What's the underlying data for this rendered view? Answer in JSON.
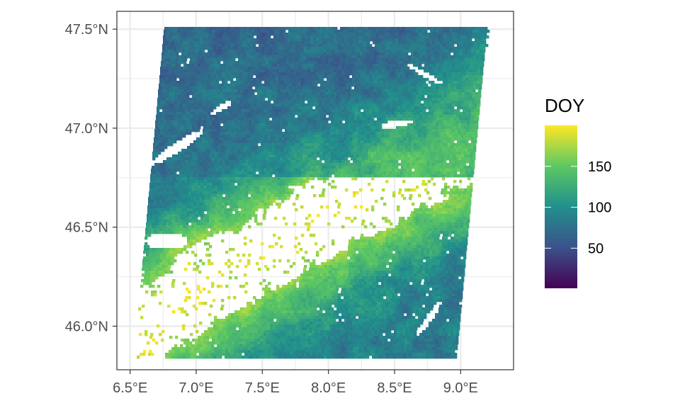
{
  "map": {
    "projection": "longitude/latitude",
    "xlim": [
      6.4,
      9.4
    ],
    "ylim": [
      45.78,
      47.59
    ],
    "x_ticks": [
      {
        "value": 6.5,
        "label": "6.5°E"
      },
      {
        "value": 7.0,
        "label": "7.0°E"
      },
      {
        "value": 7.5,
        "label": "7.5°E"
      },
      {
        "value": 8.0,
        "label": "8.0°E"
      },
      {
        "value": 8.5,
        "label": "8.5°E"
      },
      {
        "value": 9.0,
        "label": "9.0°E"
      }
    ],
    "y_ticks": [
      {
        "value": 46.0,
        "label": "46.0°N"
      },
      {
        "value": 46.5,
        "label": "46.5°N"
      },
      {
        "value": 47.0,
        "label": "47.0°N"
      },
      {
        "value": 47.5,
        "label": "47.5°N"
      }
    ],
    "grid": true,
    "raster_extent": {
      "corners": [
        [
          6.76,
          47.51
        ],
        [
          9.2,
          47.51
        ],
        [
          8.95,
          45.84
        ],
        [
          6.53,
          45.84
        ]
      ]
    }
  },
  "legend": {
    "title": "DOY",
    "range": [
      1,
      200
    ],
    "palette": "viridis",
    "colors": [
      "#440154",
      "#3B528B",
      "#21908C",
      "#5DC863",
      "#FDE725"
    ],
    "ticks": [
      {
        "value": 50,
        "label": "50"
      },
      {
        "value": 100,
        "label": "100"
      },
      {
        "value": 150,
        "label": "150"
      }
    ],
    "placement": "right"
  },
  "colors": {
    "panel_border": "#333333",
    "grid": "#ebebeb",
    "no_data": "#ffffff"
  }
}
